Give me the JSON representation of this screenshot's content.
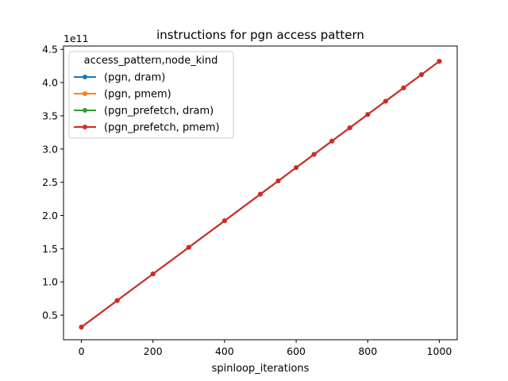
{
  "chart_data": {
    "type": "line",
    "title": "instructions for pgn access pattern",
    "xlabel": "spinloop_iterations",
    "ylabel": "",
    "y_offset_label": "1e11",
    "xlim": [
      -50,
      1050
    ],
    "ylim": [
      0.13,
      4.55
    ],
    "x_ticks": [
      0,
      200,
      400,
      600,
      800,
      1000
    ],
    "x_tick_labels": [
      "0",
      "200",
      "400",
      "600",
      "800",
      "1000"
    ],
    "y_ticks": [
      0.5,
      1.0,
      1.5,
      2.0,
      2.5,
      3.0,
      3.5,
      4.0,
      4.5
    ],
    "y_tick_labels": [
      "0.5",
      "1.0",
      "1.5",
      "2.0",
      "2.5",
      "3.0",
      "3.5",
      "4.0",
      "4.5"
    ],
    "grid": false,
    "legend": {
      "title": "access_pattern,node_kind",
      "placement": "upper-left"
    },
    "x": [
      0,
      100,
      200,
      300,
      400,
      500,
      550,
      600,
      650,
      700,
      750,
      800,
      850,
      900,
      950,
      1000
    ],
    "series": [
      {
        "name": "(pgn, dram)",
        "color": "#1f77b4",
        "values": [
          0.32,
          0.72,
          1.12,
          1.52,
          1.92,
          2.32,
          2.52,
          2.72,
          2.92,
          3.12,
          3.32,
          3.52,
          3.72,
          3.92,
          4.12,
          4.32
        ]
      },
      {
        "name": "(pgn, pmem)",
        "color": "#ff7f0e",
        "values": [
          0.32,
          0.72,
          1.12,
          1.52,
          1.92,
          2.32,
          2.52,
          2.72,
          2.92,
          3.12,
          3.32,
          3.52,
          3.72,
          3.92,
          4.12,
          4.32
        ]
      },
      {
        "name": "(pgn_prefetch, dram)",
        "color": "#2ca02c",
        "values": [
          0.32,
          0.72,
          1.12,
          1.52,
          1.92,
          2.32,
          2.52,
          2.72,
          2.92,
          3.12,
          3.32,
          3.52,
          3.72,
          3.92,
          4.12,
          4.32
        ]
      },
      {
        "name": "(pgn_prefetch, pmem)",
        "color": "#d62728",
        "values": [
          0.32,
          0.72,
          1.12,
          1.52,
          1.92,
          2.32,
          2.52,
          2.72,
          2.92,
          3.12,
          3.32,
          3.52,
          3.72,
          3.92,
          4.12,
          4.32
        ]
      }
    ]
  }
}
